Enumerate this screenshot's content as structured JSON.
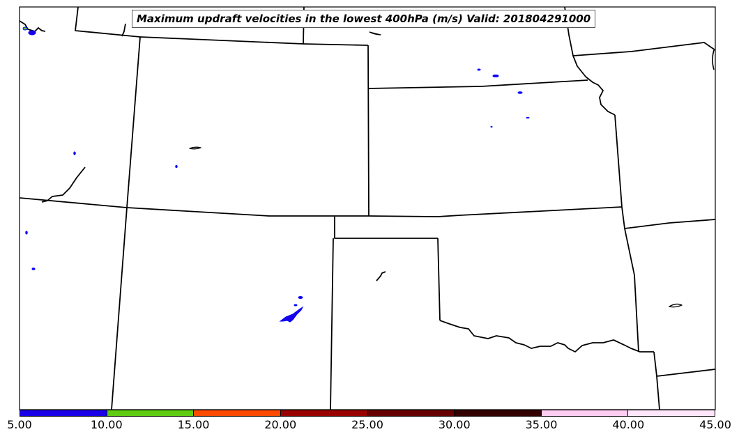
{
  "title": "Maximum updraft velocities in the lowest 400hPa (m/s) Valid: 201804291000",
  "colorbar": {
    "ticks": [
      "5.00",
      "10.00",
      "15.00",
      "20.00",
      "25.00",
      "30.00",
      "35.00",
      "40.00",
      "45.00"
    ],
    "colors": [
      "#1a00e6",
      "#5fcc12",
      "#ff4a00",
      "#990000",
      "#660000",
      "#330000",
      "#ffccf2",
      "#ffe6fa"
    ]
  },
  "map": {
    "boundary_color": "#000000",
    "contour_color": "#0000ff"
  }
}
